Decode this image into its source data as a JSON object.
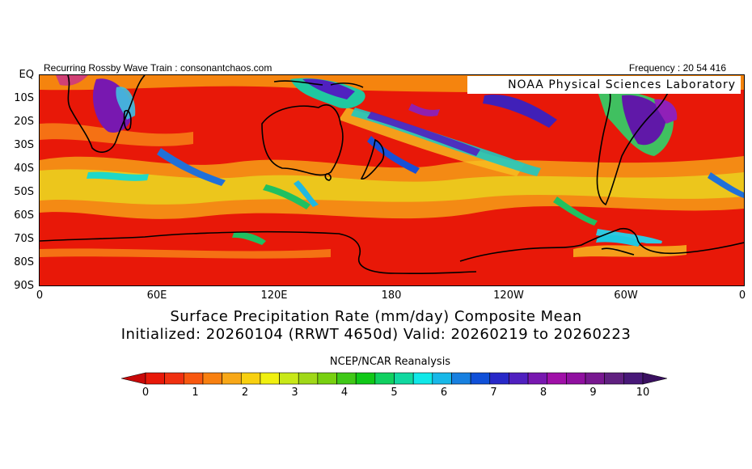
{
  "header": {
    "left_text": "Recurring Rossby Wave Train : consonantchaos.com",
    "right_text": "Frequency : 20 54 416"
  },
  "map": {
    "credit": "NOAA Physical Sciences Laboratory",
    "lat_labels": [
      "EQ",
      "10S",
      "20S",
      "30S",
      "40S",
      "50S",
      "60S",
      "70S",
      "80S",
      "90S"
    ],
    "lon_labels": [
      "0",
      "60E",
      "120E",
      "180",
      "120W",
      "60W",
      "0"
    ],
    "background_color": "#e81808"
  },
  "titles": {
    "line1": "Surface Precipitation Rate (mm/day) Composite Mean",
    "line2": "Initialized: 20260104 (RRWT 4650d) Valid: 20260219 to 20260223"
  },
  "source": "NCEP/NCAR Reanalysis",
  "colorbar": {
    "tick_labels": [
      "0",
      "1",
      "2",
      "3",
      "4",
      "5",
      "6",
      "7",
      "8",
      "9",
      "10"
    ],
    "colors": [
      "#e81808",
      "#f03010",
      "#f85810",
      "#f88010",
      "#f8a818",
      "#f8d010",
      "#f0f010",
      "#c8e818",
      "#a0d818",
      "#78d010",
      "#40c818",
      "#10c818",
      "#10d060",
      "#10d8a0",
      "#10e8e8",
      "#18b8e8",
      "#1880e0",
      "#1050d8",
      "#2828c8",
      "#5020c0",
      "#7818b0",
      "#a010a8",
      "#9010a0",
      "#781890",
      "#602080",
      "#481878"
    ],
    "under_color": "#c80808",
    "over_color": "#3a1060"
  }
}
